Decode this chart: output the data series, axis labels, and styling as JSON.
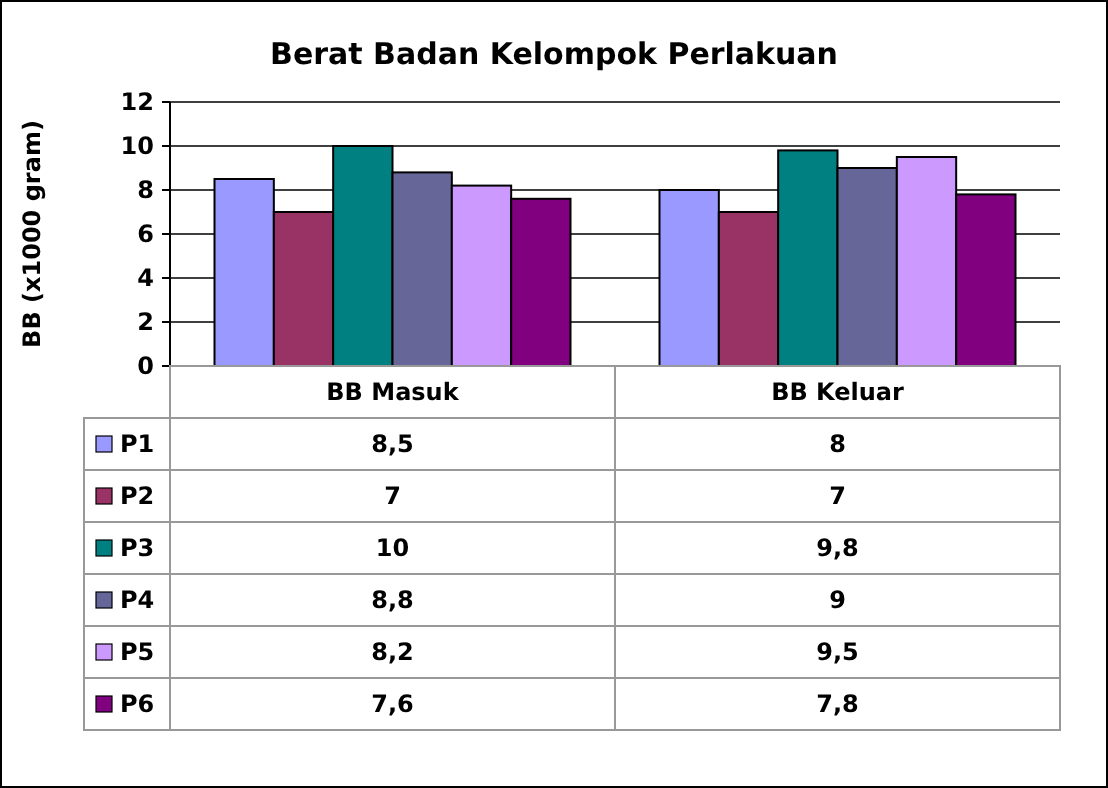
{
  "chart_data": {
    "type": "bar",
    "title": "Berat Badan Kelompok Perlakuan",
    "ylabel": "BB (x1000 gram)",
    "categories": [
      "BB Masuk",
      "BB Keluar"
    ],
    "ylim": [
      0,
      12
    ],
    "yticks": [
      0,
      2,
      4,
      6,
      8,
      10,
      12
    ],
    "grid": "y",
    "legend": "bottom",
    "series": [
      {
        "name": "P1",
        "color": "#9999ff",
        "values": [
          8.5,
          8
        ],
        "value_labels": [
          "8,5",
          "8"
        ]
      },
      {
        "name": "P2",
        "color": "#993366",
        "values": [
          7,
          7
        ],
        "value_labels": [
          "7",
          "7"
        ]
      },
      {
        "name": "P3",
        "color": "#008080",
        "values": [
          10,
          9.8
        ],
        "value_labels": [
          "10",
          "9,8"
        ]
      },
      {
        "name": "P4",
        "color": "#666699",
        "values": [
          8.8,
          9
        ],
        "value_labels": [
          "8,8",
          "9"
        ]
      },
      {
        "name": "P5",
        "color": "#cc99ff",
        "values": [
          8.2,
          9.5
        ],
        "value_labels": [
          "8,2",
          "9,5"
        ]
      },
      {
        "name": "P6",
        "color": "#800080",
        "values": [
          7.6,
          7.8
        ],
        "value_labels": [
          "7,6",
          "7,8"
        ]
      }
    ]
  }
}
